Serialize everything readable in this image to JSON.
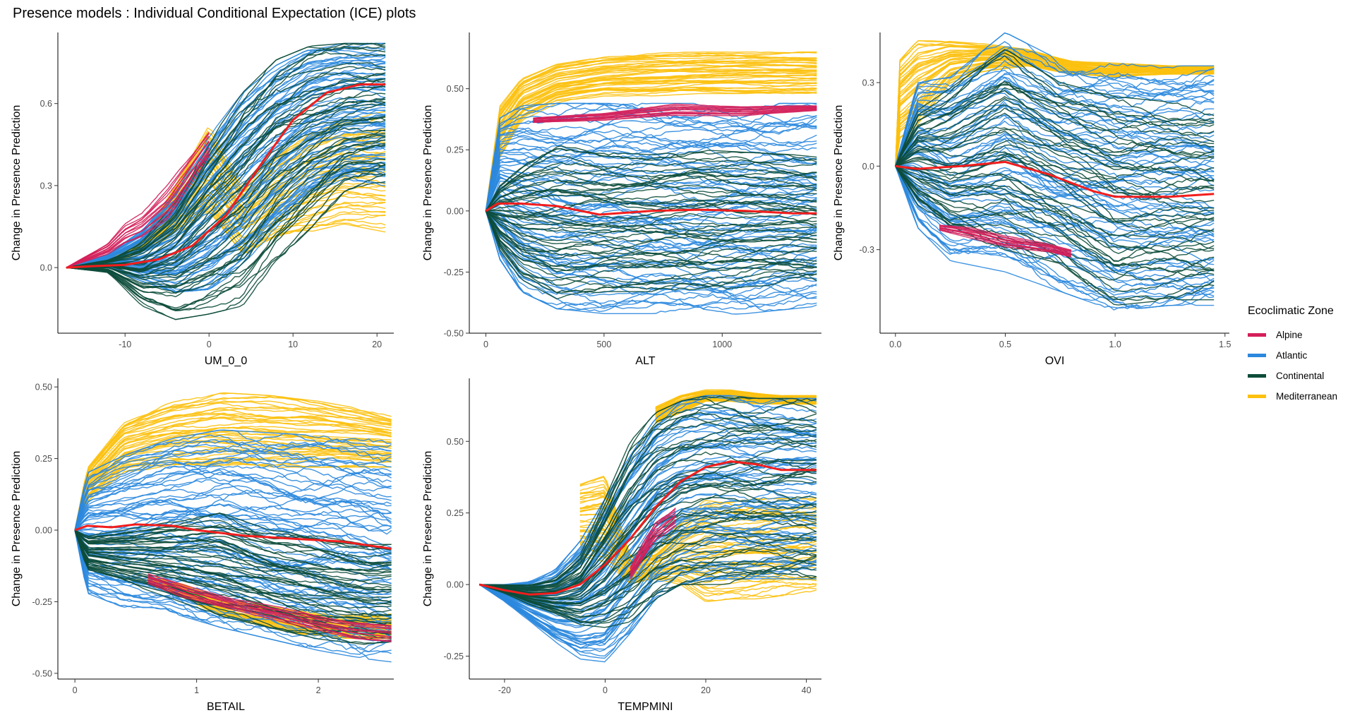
{
  "title": "Presence models : Individual Conditional Expectation (ICE) plots",
  "legend": {
    "title": "Ecoclimatic Zone",
    "items": [
      {
        "label": "Alpine",
        "color": "#d41f5a"
      },
      {
        "label": "Atlantic",
        "color": "#2b88de"
      },
      {
        "label": "Continental",
        "color": "#0d4d3b"
      },
      {
        "label": "Mediterranean",
        "color": "#fcc10f"
      }
    ]
  },
  "average_line_color": "#f21d1d",
  "chart_data": [
    {
      "type": "line",
      "xlabel": "UM_0_0",
      "ylabel": "Change in Presence Prediction",
      "xlim": [
        -18,
        22
      ],
      "ylim": [
        -0.24,
        0.86
      ],
      "xticks": [
        -10,
        0,
        10,
        20
      ],
      "xtick_labels": [
        "-10",
        "0",
        "10",
        "20"
      ],
      "yticks": [
        0.0,
        0.3,
        0.6
      ],
      "ytick_labels": [
        "0.0",
        "0.3",
        "0.6"
      ],
      "series": [
        {
          "zone": "Atlantic",
          "x": [
            -17,
            -12,
            -8,
            -4,
            0,
            4,
            8,
            12,
            16,
            21
          ],
          "y_min": [
            0.0,
            0.0,
            -0.05,
            -0.09,
            -0.08,
            0.0,
            0.14,
            0.26,
            0.3,
            0.3
          ],
          "y_max": [
            0.0,
            0.05,
            0.14,
            0.28,
            0.48,
            0.64,
            0.74,
            0.8,
            0.82,
            0.82
          ]
        },
        {
          "zone": "Continental",
          "x": [
            -17,
            -12,
            -8,
            -4,
            0,
            4,
            8,
            12,
            16,
            21
          ],
          "y_min": [
            0.0,
            -0.02,
            -0.14,
            -0.19,
            -0.17,
            -0.14,
            0.02,
            0.14,
            0.26,
            0.3
          ],
          "y_max": [
            0.0,
            0.03,
            0.1,
            0.24,
            0.46,
            0.64,
            0.76,
            0.81,
            0.82,
            0.82
          ]
        },
        {
          "zone": "Mediterranean",
          "x": [
            -17,
            -12,
            -8,
            -4,
            0,
            4,
            8,
            12,
            16,
            21
          ],
          "y_min": [
            0.0,
            0.01,
            0.06,
            0.12,
            0.2,
            0.04,
            0.1,
            0.13,
            0.16,
            0.13
          ],
          "y_max": [
            0.0,
            0.04,
            0.1,
            0.3,
            0.52,
            0.3,
            0.42,
            0.5,
            0.55,
            0.57
          ]
        },
        {
          "zone": "Alpine",
          "x": [
            -17,
            -12,
            -10,
            -8,
            -5,
            -2,
            0
          ],
          "y_min": [
            0.0,
            0.05,
            0.09,
            0.11,
            0.17,
            0.31,
            0.4
          ],
          "y_max": [
            0.0,
            0.09,
            0.16,
            0.2,
            0.3,
            0.42,
            0.5
          ]
        }
      ],
      "average": {
        "x": [
          -17,
          -14,
          -10,
          -6,
          -2,
          2,
          6,
          10,
          14,
          18,
          21
        ],
        "y": [
          0.0,
          0.005,
          0.01,
          0.03,
          0.08,
          0.19,
          0.37,
          0.54,
          0.64,
          0.67,
          0.67
        ]
      }
    },
    {
      "type": "line",
      "xlabel": "ALT",
      "ylabel": "Change in Presence Prediction",
      "xlim": [
        -70,
        1420
      ],
      "ylim": [
        -0.5,
        0.73
      ],
      "xticks": [
        0,
        500,
        1000
      ],
      "xtick_labels": [
        "0",
        "500",
        "1000"
      ],
      "yticks": [
        -0.5,
        -0.25,
        0.0,
        0.25,
        0.5
      ],
      "ytick_labels": [
        "-0.50",
        "-0.25",
        "0.00",
        "0.25",
        "0.50"
      ],
      "series": [
        {
          "zone": "Atlantic",
          "x": [
            0,
            60,
            150,
            300,
            500,
            700,
            900,
            1100,
            1300,
            1400
          ],
          "y_min": [
            0.0,
            -0.2,
            -0.33,
            -0.4,
            -0.42,
            -0.42,
            -0.43,
            -0.42,
            -0.4,
            -0.39
          ],
          "y_max": [
            0.0,
            0.38,
            0.43,
            0.44,
            0.44,
            0.44,
            0.44,
            0.44,
            0.44,
            0.44
          ]
        },
        {
          "zone": "Continental",
          "x": [
            0,
            60,
            150,
            300,
            500,
            700,
            900,
            1100,
            1300,
            1400
          ],
          "y_min": [
            0.0,
            -0.16,
            -0.28,
            -0.36,
            -0.33,
            -0.33,
            -0.33,
            -0.31,
            -0.3,
            -0.3
          ],
          "y_max": [
            0.0,
            0.12,
            0.2,
            0.27,
            0.24,
            0.23,
            0.25,
            0.24,
            0.23,
            0.22
          ]
        },
        {
          "zone": "Mediterranean",
          "x": [
            0,
            60,
            150,
            300,
            500,
            700,
            900,
            1100,
            1300,
            1400
          ],
          "y_min": [
            0.0,
            0.22,
            0.37,
            0.44,
            0.47,
            0.47,
            0.48,
            0.48,
            0.48,
            0.48
          ],
          "y_max": [
            0.0,
            0.43,
            0.54,
            0.6,
            0.63,
            0.65,
            0.65,
            0.65,
            0.65,
            0.65
          ]
        },
        {
          "zone": "Alpine",
          "x": [
            200,
            500,
            800,
            1100,
            1400
          ],
          "y_min": [
            0.36,
            0.37,
            0.39,
            0.39,
            0.41
          ],
          "y_max": [
            0.38,
            0.4,
            0.44,
            0.43,
            0.43
          ]
        }
      ],
      "average": {
        "x": [
          0,
          50,
          150,
          300,
          480,
          700,
          900,
          1100,
          1300,
          1400
        ],
        "y": [
          0.0,
          0.03,
          0.03,
          0.02,
          -0.015,
          0.0,
          0.005,
          0.0,
          -0.01,
          -0.01
        ]
      }
    },
    {
      "type": "line",
      "xlabel": "OVI",
      "ylabel": "Change in Presence Prediction",
      "xlim": [
        -0.07,
        1.52
      ],
      "ylim": [
        -0.6,
        0.48
      ],
      "xticks": [
        0.0,
        0.5,
        1.0,
        1.5
      ],
      "xtick_labels": [
        "0.0",
        "0.5",
        "1.0",
        "1.5"
      ],
      "yticks": [
        -0.3,
        0.0,
        0.3
      ],
      "ytick_labels": [
        "-0.3",
        "0.0",
        "0.3"
      ],
      "series": [
        {
          "zone": "Atlantic",
          "x": [
            0,
            0.1,
            0.25,
            0.5,
            0.75,
            1.0,
            1.25,
            1.45
          ],
          "y_min": [
            0.0,
            -0.22,
            -0.34,
            -0.38,
            -0.45,
            -0.52,
            -0.5,
            -0.5
          ],
          "y_max": [
            0.0,
            0.3,
            0.32,
            0.48,
            0.38,
            0.37,
            0.36,
            0.36
          ]
        },
        {
          "zone": "Continental",
          "x": [
            0,
            0.1,
            0.25,
            0.5,
            0.75,
            1.0,
            1.25,
            1.45
          ],
          "y_min": [
            0.0,
            -0.15,
            -0.25,
            -0.3,
            -0.35,
            -0.5,
            -0.48,
            -0.48
          ],
          "y_max": [
            0.0,
            0.2,
            0.28,
            0.42,
            0.3,
            0.25,
            0.23,
            0.22
          ]
        },
        {
          "zone": "Mediterranean",
          "x": [
            0,
            0.02,
            0.1,
            0.25,
            0.4,
            0.6,
            0.8,
            1.0,
            1.25,
            1.45
          ],
          "y_min": [
            0.0,
            0.1,
            0.15,
            0.3,
            0.34,
            0.36,
            0.33,
            0.32,
            0.33,
            0.33
          ],
          "y_max": [
            0.0,
            0.38,
            0.45,
            0.45,
            0.44,
            0.42,
            0.38,
            0.37,
            0.36,
            0.36
          ]
        },
        {
          "zone": "Alpine",
          "x": [
            0.2,
            0.35,
            0.5,
            0.7,
            0.8
          ],
          "y_min": [
            -0.23,
            -0.26,
            -0.29,
            -0.31,
            -0.33
          ],
          "y_max": [
            -0.21,
            -0.22,
            -0.25,
            -0.28,
            -0.3
          ]
        }
      ],
      "average": {
        "x": [
          0,
          0.1,
          0.3,
          0.5,
          0.7,
          0.9,
          1.0,
          1.25,
          1.45
        ],
        "y": [
          0.0,
          -0.01,
          0.0,
          0.015,
          -0.03,
          -0.09,
          -0.11,
          -0.11,
          -0.1
        ]
      }
    },
    {
      "type": "line",
      "xlabel": "BETAIL",
      "ylabel": "Change in Presence Prediction",
      "xlim": [
        -0.14,
        2.62
      ],
      "ylim": [
        -0.52,
        0.53
      ],
      "xticks": [
        0,
        1,
        2
      ],
      "xtick_labels": [
        "0",
        "1",
        "2"
      ],
      "yticks": [
        -0.5,
        -0.25,
        0.0,
        0.25,
        0.5
      ],
      "ytick_labels": [
        "-0.50",
        "-0.25",
        "0.00",
        "0.25",
        "0.50"
      ],
      "series": [
        {
          "zone": "Atlantic",
          "x": [
            0,
            0.1,
            0.4,
            0.8,
            1.2,
            1.6,
            2.0,
            2.4,
            2.6
          ],
          "y_min": [
            0.0,
            -0.22,
            -0.27,
            -0.29,
            -0.34,
            -0.38,
            -0.42,
            -0.45,
            -0.46
          ],
          "y_max": [
            0.0,
            0.2,
            0.26,
            0.32,
            0.35,
            0.34,
            0.33,
            0.32,
            0.31
          ]
        },
        {
          "zone": "Continental",
          "x": [
            0,
            0.1,
            0.4,
            0.8,
            1.2,
            1.6,
            2.0,
            2.4,
            2.6
          ],
          "y_min": [
            0.0,
            -0.14,
            -0.18,
            -0.24,
            -0.3,
            -0.34,
            -0.38,
            -0.4,
            -0.4
          ],
          "y_max": [
            0.0,
            -0.02,
            0.0,
            0.03,
            0.06,
            0.0,
            -0.02,
            -0.05,
            -0.05
          ]
        },
        {
          "zone": "Mediterranean",
          "x": [
            0,
            0.1,
            0.4,
            0.8,
            1.2,
            1.6,
            2.0,
            2.4,
            2.6
          ],
          "y_min": [
            0.0,
            0.1,
            0.2,
            0.22,
            0.22,
            0.22,
            0.22,
            0.22,
            0.22
          ],
          "y_max": [
            0.0,
            0.22,
            0.38,
            0.45,
            0.48,
            0.47,
            0.45,
            0.42,
            0.4
          ]
        },
        {
          "zone": "Mediterranean",
          "x": [
            0.6,
            0.9,
            1.2,
            1.5,
            1.8,
            2.2,
            2.6
          ],
          "y_min": [
            -0.19,
            -0.24,
            -0.3,
            -0.33,
            -0.36,
            -0.38,
            -0.38
          ],
          "y_max": [
            -0.16,
            -0.19,
            -0.24,
            -0.26,
            -0.28,
            -0.3,
            -0.29
          ]
        },
        {
          "zone": "Alpine",
          "x": [
            0.6,
            0.9,
            1.3,
            1.7,
            2.0,
            2.3,
            2.6
          ],
          "y_min": [
            -0.19,
            -0.24,
            -0.28,
            -0.32,
            -0.35,
            -0.38,
            -0.39
          ],
          "y_max": [
            -0.15,
            -0.19,
            -0.24,
            -0.27,
            -0.3,
            -0.32,
            -0.33
          ]
        }
      ],
      "average": {
        "x": [
          0,
          0.1,
          0.3,
          0.5,
          0.8,
          1.0,
          1.4,
          1.8,
          2.2,
          2.6
        ],
        "y": [
          0.0,
          0.015,
          0.01,
          0.02,
          0.015,
          0.0,
          -0.02,
          -0.03,
          -0.04,
          -0.065
        ]
      }
    },
    {
      "type": "line",
      "xlabel": "TEMPMINI",
      "ylabel": "Change in Presence Prediction",
      "xlim": [
        -27,
        43
      ],
      "ylim": [
        -0.33,
        0.72
      ],
      "xticks": [
        -20,
        0,
        20,
        40
      ],
      "xtick_labels": [
        "-20",
        "0",
        "20",
        "40"
      ],
      "yticks": [
        -0.25,
        0.0,
        0.25,
        0.5
      ],
      "ytick_labels": [
        "-0.25",
        "0.00",
        "0.25",
        "0.50"
      ],
      "series": [
        {
          "zone": "Atlantic",
          "x": [
            -25,
            -20,
            -15,
            -10,
            -5,
            0,
            5,
            10,
            15,
            20,
            25,
            30,
            35,
            42
          ],
          "y_min": [
            0.0,
            -0.06,
            -0.13,
            -0.2,
            -0.26,
            -0.27,
            -0.17,
            -0.05,
            0.0,
            0.02,
            0.02,
            0.02,
            0.02,
            0.02
          ],
          "y_max": [
            0.0,
            0.0,
            0.01,
            0.05,
            0.15,
            0.3,
            0.45,
            0.58,
            0.64,
            0.66,
            0.66,
            0.65,
            0.65,
            0.65
          ]
        },
        {
          "zone": "Continental",
          "x": [
            -25,
            -20,
            -15,
            -10,
            -5,
            0,
            5,
            10,
            15,
            20,
            25,
            30,
            35,
            42
          ],
          "y_min": [
            0.0,
            -0.03,
            -0.07,
            -0.1,
            -0.14,
            -0.15,
            -0.13,
            -0.05,
            0.0,
            0.0,
            0.0,
            0.0,
            0.0,
            0.0
          ],
          "y_max": [
            0.0,
            0.0,
            0.0,
            0.02,
            0.1,
            0.3,
            0.5,
            0.6,
            0.64,
            0.66,
            0.66,
            0.65,
            0.65,
            0.65
          ]
        },
        {
          "zone": "Mediterranean",
          "x": [
            -5,
            0,
            5,
            10,
            15,
            20,
            25,
            30,
            35,
            42
          ],
          "y_min": [
            0.1,
            0.08,
            0.0,
            0.02,
            0.0,
            -0.06,
            -0.05,
            -0.05,
            -0.04,
            -0.03
          ],
          "y_max": [
            0.35,
            0.38,
            0.1,
            0.12,
            0.22,
            0.3,
            0.3,
            0.3,
            0.3,
            0.3
          ]
        },
        {
          "zone": "Mediterranean",
          "x": [
            10,
            15,
            20,
            25,
            30,
            35,
            42
          ],
          "y_min": [
            0.56,
            0.6,
            0.64,
            0.64,
            0.63,
            0.63,
            0.63
          ],
          "y_max": [
            0.62,
            0.66,
            0.68,
            0.68,
            0.67,
            0.66,
            0.66
          ]
        },
        {
          "zone": "Alpine",
          "x": [
            5,
            8,
            10,
            14
          ],
          "y_min": [
            0.02,
            0.1,
            0.15,
            0.2
          ],
          "y_max": [
            0.06,
            0.16,
            0.22,
            0.27
          ]
        }
      ],
      "average": {
        "x": [
          -25,
          -20,
          -15,
          -10,
          -5,
          0,
          5,
          10,
          15,
          20,
          25,
          30,
          35,
          42
        ],
        "y": [
          0.0,
          -0.02,
          -0.035,
          -0.03,
          0.0,
          0.07,
          0.16,
          0.27,
          0.36,
          0.41,
          0.43,
          0.42,
          0.4,
          0.4
        ]
      }
    }
  ]
}
